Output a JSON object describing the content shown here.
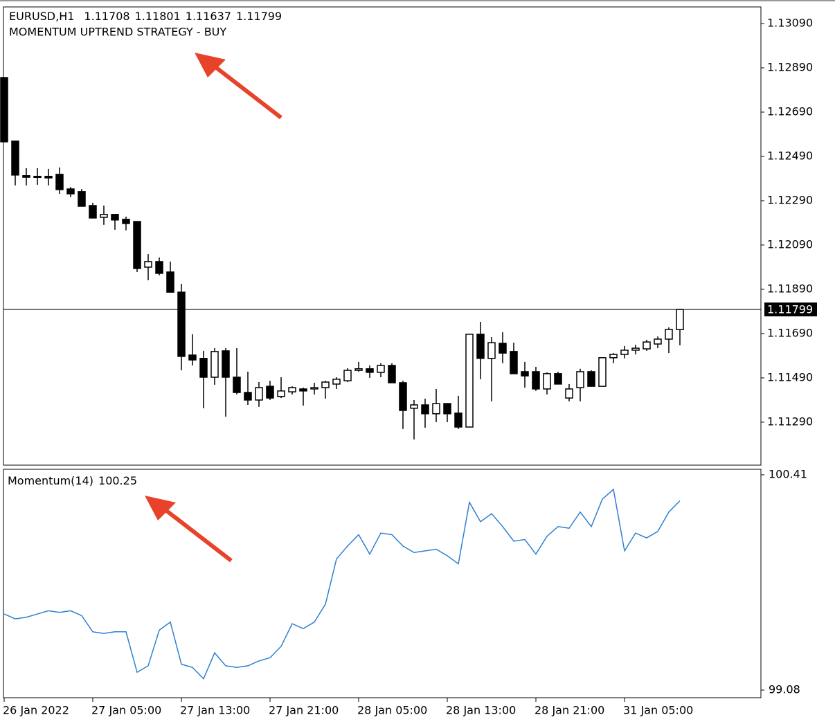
{
  "chart_data": [
    {
      "type": "candlestick",
      "symbol": "EURUSD,H1",
      "header_values": [
        1.11708,
        1.11801,
        1.11637,
        1.11799
      ],
      "subtitle": "MOMENTUM UPTREND STRATEGY - BUY",
      "categories": [
        "26 Jan 2022",
        null,
        null,
        null,
        null,
        null,
        null,
        null,
        "27 Jan 05:00",
        null,
        null,
        null,
        null,
        null,
        null,
        null,
        "27 Jan 13:00",
        null,
        null,
        null,
        null,
        null,
        null,
        null,
        "27 Jan 21:00",
        null,
        null,
        null,
        null,
        null,
        null,
        null,
        "28 Jan 05:00",
        null,
        null,
        null,
        null,
        null,
        null,
        null,
        "28 Jan 13:00",
        null,
        null,
        null,
        null,
        null,
        null,
        null,
        "28 Jan 21:00",
        null,
        null,
        null,
        null,
        null,
        null,
        null,
        "31 Jan 05:00",
        null,
        null,
        null,
        null,
        null
      ],
      "open": [
        1.12846,
        1.12559,
        1.12403,
        1.124,
        1.124,
        1.12409,
        1.12343,
        1.12331,
        1.12268,
        1.12215,
        1.12228,
        1.12206,
        1.12196,
        1.1199,
        1.12015,
        1.11968,
        1.11877,
        1.11593,
        1.11578,
        1.11493,
        1.11612,
        1.11493,
        1.11424,
        1.1139,
        1.11452,
        1.11406,
        1.11427,
        1.1144,
        1.1144,
        1.11446,
        1.11462,
        1.11477,
        1.11524,
        1.11531,
        1.11515,
        1.11546,
        1.11468,
        1.11353,
        1.11368,
        1.11328,
        1.11374,
        1.11331,
        1.11268,
        1.11687,
        1.11578,
        1.11646,
        1.11609,
        1.11518,
        1.11518,
        1.1144,
        1.11509,
        1.11399,
        1.11446,
        1.11518,
        1.11452,
        1.11581,
        1.11596,
        1.11615,
        1.11621,
        1.11643,
        1.11665,
        1.11708
      ],
      "high": [
        1.12846,
        1.12559,
        1.12437,
        1.12437,
        1.12434,
        1.1244,
        1.12352,
        1.12343,
        1.12281,
        1.12268,
        1.12228,
        1.12218,
        1.12196,
        1.12049,
        1.12034,
        1.12015,
        1.11915,
        1.11687,
        1.11612,
        1.11624,
        1.11624,
        1.11624,
        1.11518,
        1.11471,
        1.11477,
        1.11493,
        1.11452,
        1.11446,
        1.11468,
        1.11477,
        1.11493,
        1.11534,
        1.11562,
        1.11546,
        1.11556,
        1.11556,
        1.11477,
        1.1139,
        1.11396,
        1.1144,
        1.11374,
        1.11409,
        1.11687,
        1.11743,
        1.11674,
        1.11696,
        1.11649,
        1.11562,
        1.1154,
        1.11515,
        1.11518,
        1.11462,
        1.11531,
        1.11524,
        1.11581,
        1.11602,
        1.11634,
        1.1164,
        1.11662,
        1.11677,
        1.11718,
        1.11801
      ],
      "low": [
        1.12556,
        1.12359,
        1.12359,
        1.12362,
        1.12359,
        1.12321,
        1.12306,
        1.12265,
        1.12212,
        1.12181,
        1.12159,
        1.12156,
        1.11968,
        1.11931,
        1.11953,
        1.11877,
        1.11524,
        1.11546,
        1.11353,
        1.11459,
        1.11315,
        1.11415,
        1.11368,
        1.11359,
        1.1139,
        1.11399,
        1.11415,
        1.11365,
        1.11415,
        1.11396,
        1.1144,
        1.11471,
        1.11518,
        1.1149,
        1.11493,
        1.11468,
        1.11259,
        1.11212,
        1.11265,
        1.1129,
        1.1129,
        1.11259,
        1.11268,
        1.11484,
        1.11384,
        1.11556,
        1.11509,
        1.11446,
        1.11431,
        1.11415,
        1.11462,
        1.11384,
        1.11384,
        1.11452,
        1.11452,
        1.11556,
        1.11578,
        1.11596,
        1.11612,
        1.11624,
        1.11602,
        1.11637
      ],
      "close": [
        1.12556,
        1.12406,
        1.12396,
        1.12396,
        1.12393,
        1.1234,
        1.12321,
        1.12265,
        1.12212,
        1.12228,
        1.12203,
        1.12187,
        1.11984,
        1.12015,
        1.11962,
        1.11877,
        1.11587,
        1.11571,
        1.11493,
        1.11609,
        1.11493,
        1.11424,
        1.1139,
        1.11446,
        1.11399,
        1.11431,
        1.11446,
        1.11431,
        1.11446,
        1.11471,
        1.11484,
        1.11524,
        1.11531,
        1.11515,
        1.11546,
        1.11468,
        1.11343,
        1.11368,
        1.11328,
        1.11374,
        1.11328,
        1.11268,
        1.11687,
        1.11578,
        1.11649,
        1.11602,
        1.11509,
        1.11499,
        1.1144,
        1.11509,
        1.11462,
        1.1144,
        1.11518,
        1.11452,
        1.11581,
        1.11596,
        1.11615,
        1.11624,
        1.11652,
        1.11665,
        1.11709,
        1.11799
      ],
      "up_color": "#ffffff",
      "down_color": "#000000",
      "ylim": [
        1.11096,
        1.13165
      ],
      "yticks": [
        {
          "value": 1.1309,
          "label": "1.13090"
        },
        {
          "value": 1.1289,
          "label": "1.12890"
        },
        {
          "value": 1.1269,
          "label": "1.12690"
        },
        {
          "value": 1.1249,
          "label": "1.12490"
        },
        {
          "value": 1.1229,
          "label": "1.12290"
        },
        {
          "value": 1.1209,
          "label": "1.12090"
        },
        {
          "value": 1.1189,
          "label": "1.11890"
        },
        {
          "value": 1.1169,
          "label": "1.11690"
        },
        {
          "value": 1.1149,
          "label": "1.11490"
        },
        {
          "value": 1.1129,
          "label": "1.11290"
        }
      ],
      "last_price": 1.11799
    },
    {
      "type": "line",
      "title": "Momentum(14)",
      "last_value": 100.25,
      "color": "#2f7fd0",
      "values": [
        99.55,
        99.52,
        99.53,
        99.55,
        99.57,
        99.56,
        99.57,
        99.54,
        99.44,
        99.43,
        99.44,
        99.44,
        99.19,
        99.23,
        99.45,
        99.5,
        99.24,
        99.22,
        99.15,
        99.31,
        99.23,
        99.22,
        99.23,
        99.26,
        99.28,
        99.35,
        99.49,
        99.46,
        99.5,
        99.61,
        99.89,
        99.97,
        100.04,
        99.92,
        100.05,
        100.04,
        99.97,
        99.93,
        99.94,
        99.95,
        99.91,
        99.86,
        100.24,
        100.12,
        100.17,
        100.09,
        100.0,
        100.01,
        99.92,
        100.03,
        100.09,
        100.08,
        100.18,
        100.09,
        100.26,
        100.32,
        99.94,
        100.05,
        100.02,
        100.06,
        100.18,
        100.25
      ],
      "ylim": [
        99.033,
        100.444
      ],
      "yticks": [
        100.41,
        99.08
      ]
    }
  ]
}
